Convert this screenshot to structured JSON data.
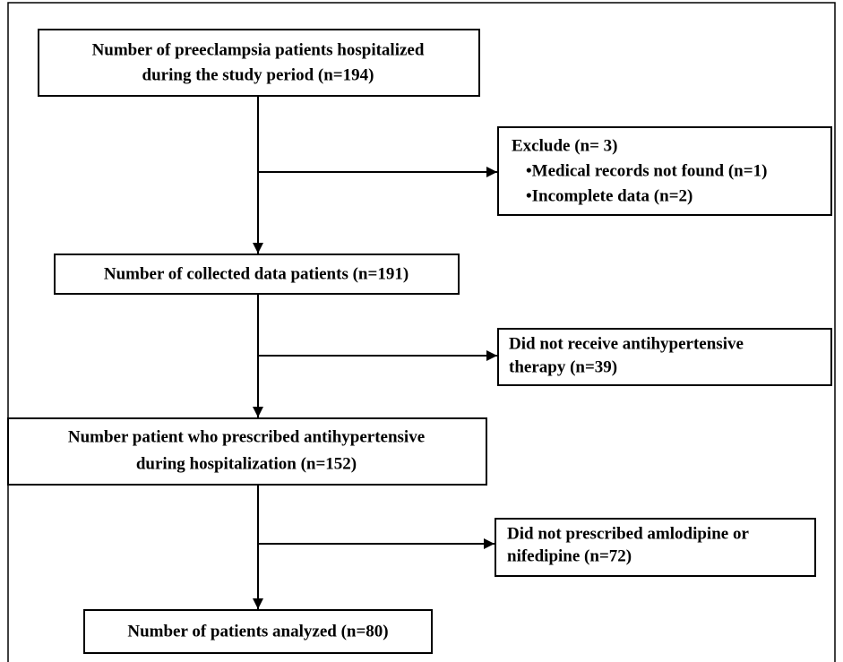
{
  "nodes": [
    {
      "lines": [
        "Number of preeclampsia patients hospitalized",
        "during the study period (n=194)"
      ]
    },
    {
      "lines": [
        "Exclude (n= 3)",
        "•Medical records not found (n=1)",
        "•Incomplete data (n=2)"
      ]
    },
    {
      "lines": [
        "Number of collected data patients (n=191)"
      ]
    },
    {
      "lines": [
        "Did not receive antihypertensive",
        "therapy (n=39)"
      ]
    },
    {
      "lines": [
        "Number patient who prescribed antihypertensive",
        "during hospitalization (n=152)"
      ]
    },
    {
      "lines": [
        "Did not prescribed amlodipine or",
        "nifedipine (n=72)"
      ]
    },
    {
      "lines": [
        "Number of patients analyzed (n=80)"
      ]
    }
  ]
}
